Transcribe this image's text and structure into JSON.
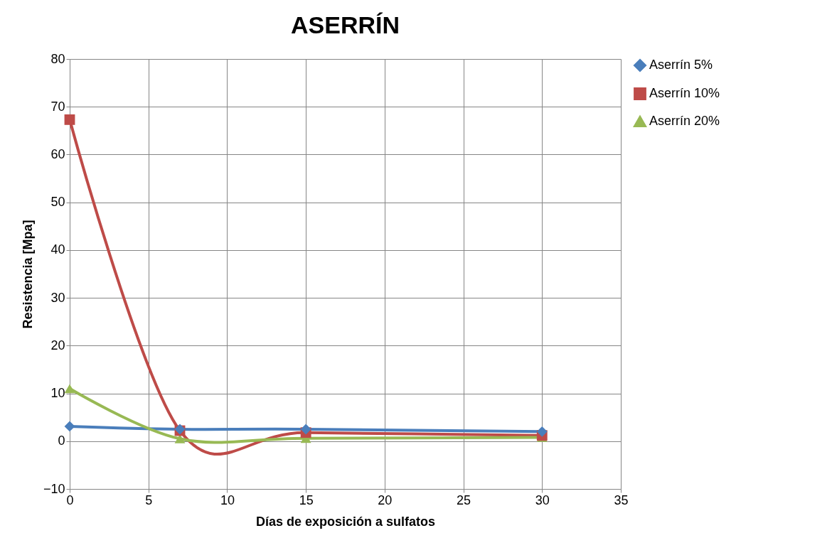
{
  "chart_data": {
    "type": "line",
    "title": "ASERRÍN",
    "xlabel": "Días de exposición a sulfatos",
    "ylabel": "Resistencia [Mpa]",
    "x": [
      0,
      7,
      15,
      30
    ],
    "series": [
      {
        "name": "Aserrín 5%",
        "color": "#4a7ebb",
        "marker": "diamond",
        "values": [
          3.1,
          2.5,
          2.5,
          2.0
        ]
      },
      {
        "name": "Aserrín 10%",
        "color": "#be4b48",
        "marker": "square",
        "values": [
          67.3,
          2.2,
          1.8,
          1.2
        ]
      },
      {
        "name": "Aserrín 20%",
        "color": "#98b954",
        "marker": "triangle",
        "values": [
          11.0,
          0.5,
          0.6,
          0.8
        ]
      }
    ],
    "xlim": [
      0,
      35
    ],
    "xticks": [
      0,
      5,
      10,
      15,
      20,
      25,
      30,
      35
    ],
    "ylim": [
      -10,
      80
    ],
    "yticks": [
      -10,
      0,
      10,
      20,
      30,
      40,
      50,
      60,
      70,
      80
    ],
    "grid": true,
    "legend": "right",
    "line_style": "solid"
  }
}
